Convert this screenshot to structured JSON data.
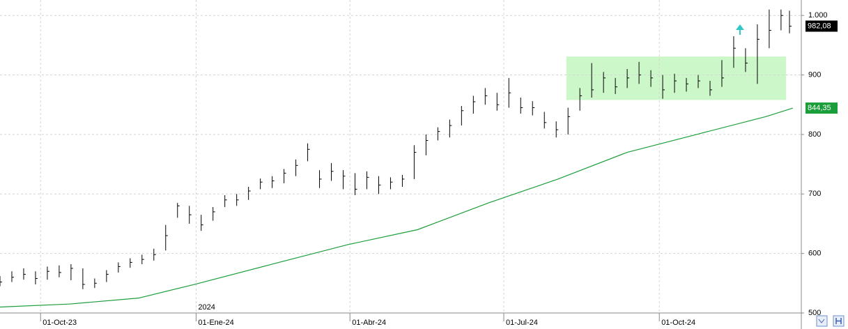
{
  "chart_data": {
    "type": "ohlc",
    "x": [
      -24,
      -17,
      -10,
      -3,
      4,
      11,
      18,
      25,
      32,
      39,
      46,
      53,
      60,
      67,
      74,
      81,
      88,
      95,
      102,
      109,
      116,
      123,
      130,
      137,
      144,
      151,
      158,
      165,
      172,
      179,
      186,
      193,
      200,
      207,
      214,
      221,
      228,
      235,
      242,
      249,
      256,
      263,
      270,
      277,
      284,
      291,
      298,
      305,
      312,
      319,
      326,
      333,
      340,
      347,
      354,
      361,
      368,
      375,
      382,
      389,
      396,
      403,
      410,
      417,
      424,
      431,
      438,
      443
    ],
    "high": [
      562,
      570,
      575,
      570,
      578,
      580,
      582,
      575,
      558,
      572,
      585,
      592,
      598,
      608,
      648,
      685,
      680,
      665,
      678,
      698,
      700,
      712,
      726,
      730,
      742,
      758,
      785,
      740,
      752,
      740,
      735,
      738,
      730,
      728,
      732,
      782,
      800,
      812,
      825,
      848,
      865,
      878,
      870,
      895,
      862,
      856,
      838,
      822,
      845,
      878,
      920,
      905,
      895,
      910,
      922,
      908,
      900,
      902,
      895,
      900,
      890,
      925,
      965,
      945,
      985,
      1010,
      1010,
      1008
    ],
    "low": [
      545,
      552,
      556,
      548,
      556,
      560,
      555,
      540,
      542,
      552,
      568,
      576,
      582,
      588,
      605,
      660,
      650,
      638,
      655,
      678,
      680,
      690,
      708,
      710,
      718,
      730,
      755,
      710,
      722,
      708,
      698,
      708,
      700,
      708,
      712,
      725,
      765,
      790,
      795,
      815,
      835,
      850,
      840,
      845,
      835,
      832,
      810,
      795,
      800,
      840,
      862,
      870,
      868,
      878,
      885,
      880,
      860,
      870,
      872,
      878,
      865,
      880,
      912,
      905,
      885,
      945,
      975,
      970
    ],
    "close": [
      552,
      560,
      565,
      558,
      570,
      568,
      575,
      548,
      550,
      565,
      578,
      585,
      590,
      598,
      630,
      680,
      665,
      648,
      670,
      690,
      690,
      705,
      720,
      722,
      735,
      748,
      775,
      725,
      738,
      730,
      708,
      728,
      715,
      720,
      725,
      770,
      790,
      805,
      815,
      840,
      855,
      865,
      850,
      870,
      845,
      845,
      820,
      808,
      830,
      865,
      875,
      895,
      880,
      895,
      900,
      895,
      875,
      890,
      885,
      890,
      875,
      895,
      945,
      920,
      960,
      975,
      1000,
      982.08
    ],
    "color": "#000000",
    "last_label": "982,08",
    "overlay": {
      "type": "line",
      "x": [
        -24,
        17,
        58,
        91,
        141,
        182,
        223,
        265,
        306,
        347,
        388,
        429,
        445
      ],
      "values": [
        510,
        515,
        525,
        548,
        585,
        615,
        640,
        685,
        725,
        770,
        800,
        830,
        844.35
      ],
      "color": "#1a9e3a",
      "last_label": "844,35"
    },
    "box": {
      "x": [
        311,
        441
      ],
      "y": [
        858,
        931
      ],
      "color": "#ccf7c8"
    },
    "xlim": [
      -24,
      450
    ],
    "ylim": [
      500,
      1026
    ],
    "xticks": [
      {
        "value": 0,
        "label": "01-Oct-23"
      },
      {
        "value": 92,
        "label": "01-Ene-24"
      },
      {
        "value": 183,
        "label": "01-Abr-24"
      },
      {
        "value": 274,
        "label": "01-Jul-24"
      },
      {
        "value": 366,
        "label": "01-Oct-24"
      }
    ],
    "year_label": "2024",
    "yticks": [
      500,
      600,
      700,
      800,
      900,
      {
        "value": 1000,
        "label": "1.000"
      }
    ],
    "grid": true
  }
}
